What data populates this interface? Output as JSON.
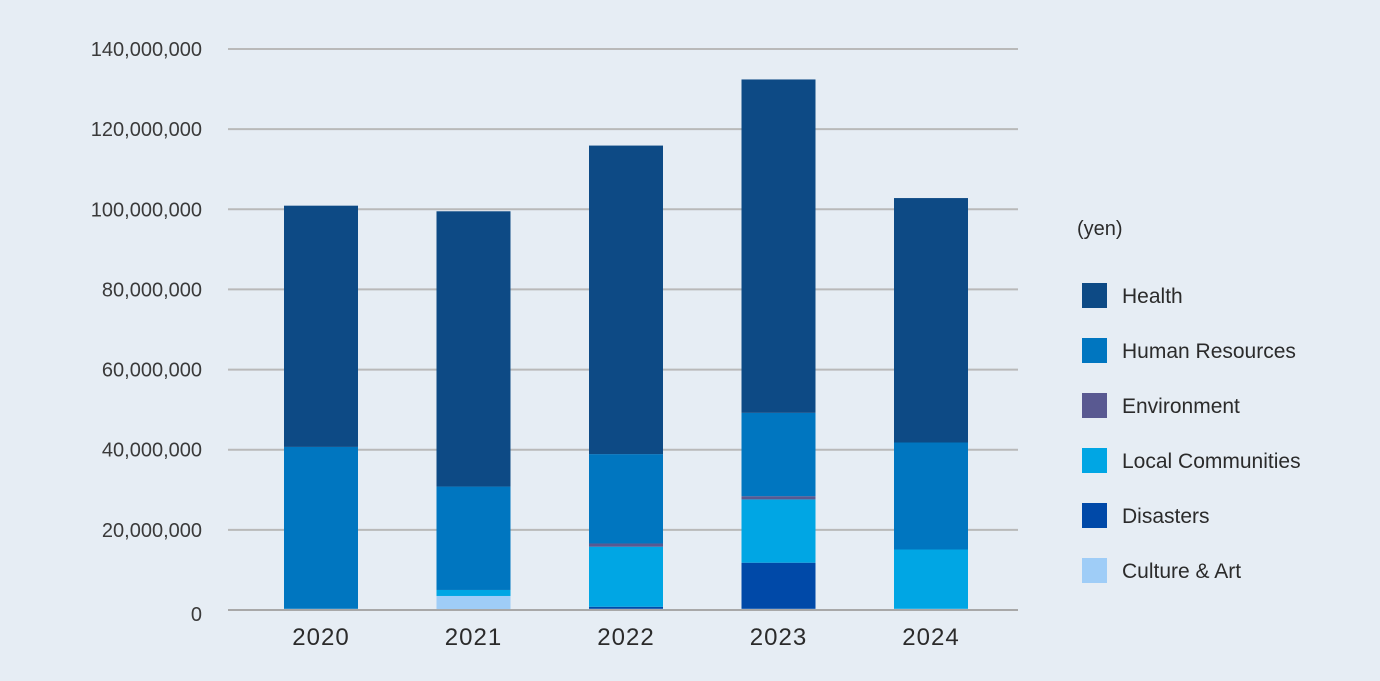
{
  "chart_data": {
    "type": "bar",
    "stacked": true,
    "unit_label": "(yen)",
    "categories": [
      "2020",
      "2021",
      "2022",
      "2023",
      "2024"
    ],
    "ylim": [
      0,
      140000000
    ],
    "yticks": [
      0,
      20000000,
      40000000,
      60000000,
      80000000,
      100000000,
      120000000,
      140000000
    ],
    "ytick_labels": [
      "0",
      "20,000,000",
      "40,000,000",
      "60,000,000",
      "80,000,000",
      "100,000,000",
      "120,000,000",
      "140,000,000"
    ],
    "grid": true,
    "legend_position": "right",
    "series": [
      {
        "name": "Culture & Art",
        "color": "#9fcdf7",
        "values": [
          300000,
          3500000,
          300000,
          300000,
          300000
        ]
      },
      {
        "name": "Disasters",
        "color": "#0049a8",
        "values": [
          0,
          0,
          500000,
          11500000,
          0
        ]
      },
      {
        "name": "Local Communities",
        "color": "#00a6e4",
        "values": [
          0,
          1500000,
          15000000,
          15800000,
          14800000
        ]
      },
      {
        "name": "Environment",
        "color": "#595991",
        "values": [
          0,
          0,
          800000,
          800000,
          0
        ]
      },
      {
        "name": "Human Resources",
        "color": "#0076c0",
        "values": [
          40400000,
          25800000,
          22300000,
          20800000,
          26700000
        ]
      },
      {
        "name": "Health",
        "color": "#0d4a85",
        "values": [
          60200000,
          68700000,
          77000000,
          83200000,
          61000000
        ]
      }
    ]
  }
}
